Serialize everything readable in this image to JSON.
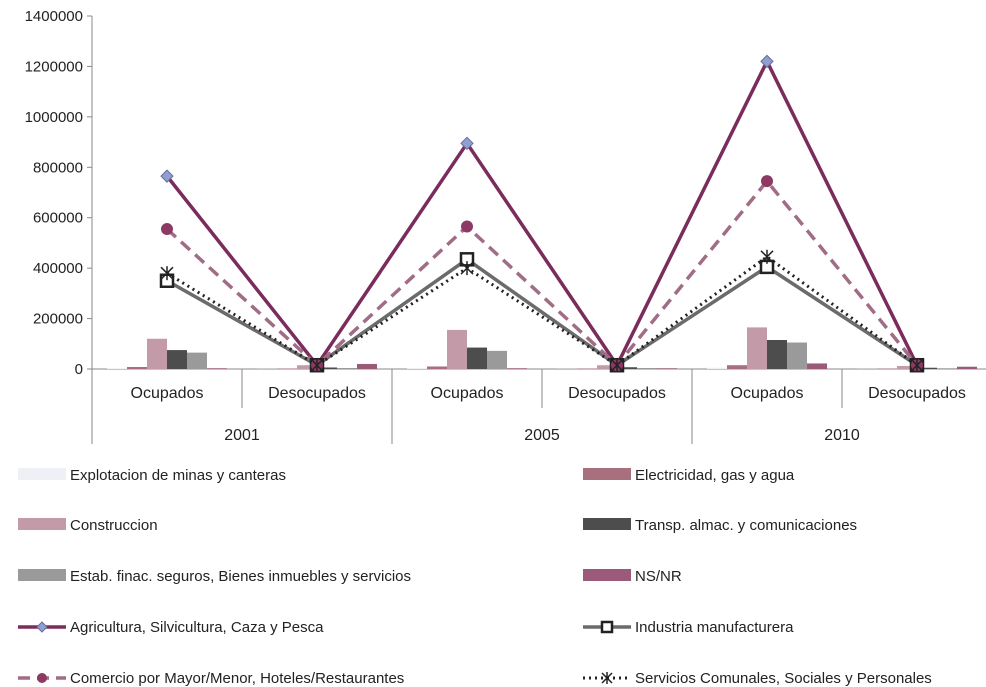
{
  "chart_data": {
    "type": "bar+line",
    "ylim": [
      0,
      1400000
    ],
    "yticks": [
      "0",
      "200000",
      "400000",
      "600000",
      "800000",
      "1000000",
      "1200000",
      "1400000"
    ],
    "ytick_values": [
      0,
      200000,
      400000,
      600000,
      800000,
      1000000,
      1200000,
      1400000
    ],
    "grid": false,
    "categories": [
      {
        "sub": "Ocupados",
        "year": "2001"
      },
      {
        "sub": "Desocupados",
        "year": "2001"
      },
      {
        "sub": "Ocupados",
        "year": "2005"
      },
      {
        "sub": "Desocupados",
        "year": "2005"
      },
      {
        "sub": "Ocupados",
        "year": "2010"
      },
      {
        "sub": "Desocupados",
        "year": "2010"
      }
    ],
    "years": [
      "2001",
      "2005",
      "2010"
    ],
    "legend_position": "bottom",
    "bar_series": [
      {
        "name": "Explotacion de minas y canteras",
        "color": "#eef0f6",
        "values": [
          3000,
          500,
          4000,
          500,
          5000,
          500
        ]
      },
      {
        "name": "Electricidad, gas y agua",
        "color": "#a8707f",
        "values": [
          8000,
          2000,
          10000,
          2000,
          15000,
          1500
        ]
      },
      {
        "name": "Construccion",
        "color": "#c29aa8",
        "values": [
          120000,
          15000,
          155000,
          15000,
          165000,
          12000
        ]
      },
      {
        "name": "Transp. almac. y comunicaciones",
        "color": "#4d4d4d",
        "values": [
          75000,
          6000,
          85000,
          7000,
          115000,
          5000
        ]
      },
      {
        "name": "Estab. finac. seguros, Bienes inmuebles y servicios",
        "color": "#9a9a9a",
        "values": [
          65000,
          4000,
          72000,
          4000,
          105000,
          3000
        ]
      },
      {
        "name": "NS/NR",
        "color": "#9a5a78",
        "values": [
          3000,
          20000,
          3000,
          3000,
          22000,
          9000
        ]
      }
    ],
    "line_series": [
      {
        "name": "Agricultura, Silvicultura, Caza y Pesca",
        "color": "#7a2c5c",
        "marker": "diamond",
        "dash": "solid",
        "values": [
          765000,
          15000,
          895000,
          15000,
          1220000,
          15000
        ]
      },
      {
        "name": "Industria manufacturera",
        "color": "#6b6b6b",
        "marker": "square",
        "dash": "solid",
        "values": [
          350000,
          15000,
          435000,
          15000,
          405000,
          15000
        ]
      },
      {
        "name": "Comercio por Mayor/Menor, Hoteles/Restaurantes",
        "color": "#a06c86",
        "marker": "circle",
        "dash": "dashed",
        "values": [
          555000,
          15000,
          565000,
          15000,
          745000,
          15000
        ]
      },
      {
        "name": "Servicios Comunales, Sociales y Personales",
        "color": "#222222",
        "marker": "star",
        "dash": "dotted",
        "values": [
          380000,
          15000,
          400000,
          15000,
          445000,
          15000
        ]
      }
    ],
    "legend_order": [
      "Explotacion de minas y canteras",
      "Electricidad, gas y agua",
      "Construccion",
      "Transp. almac. y comunicaciones",
      "Estab. finac. seguros, Bienes inmuebles y servicios",
      "NS/NR",
      "Agricultura, Silvicultura, Caza y Pesca",
      "Industria manufacturera",
      "Comercio por Mayor/Menor, Hoteles/Restaurantes",
      "Servicios Comunales, Sociales y Personales"
    ]
  }
}
